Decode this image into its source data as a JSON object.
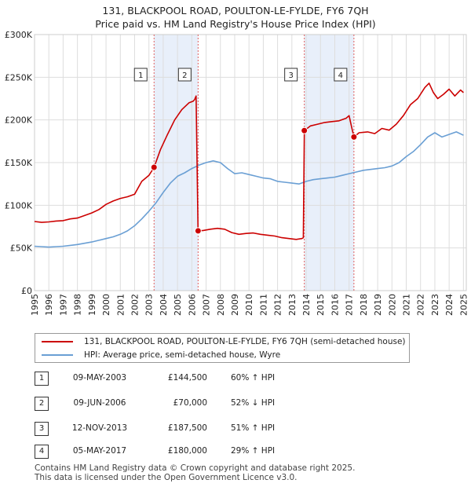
{
  "chart_data": {
    "type": "line",
    "title": "131, BLACKPOOL ROAD, POULTON-LE-FYLDE, FY6 7QH",
    "subtitle": "Price paid vs. HM Land Registry's House Price Index (HPI)",
    "ylim": [
      0,
      300000
    ],
    "xlim": [
      1995,
      2025.2
    ],
    "y_ticks": [
      0,
      50000,
      100000,
      150000,
      200000,
      250000,
      300000
    ],
    "y_tick_labels": [
      "£0",
      "£50K",
      "£100K",
      "£150K",
      "£200K",
      "£250K",
      "£300K"
    ],
    "x_ticks": [
      1995,
      1996,
      1997,
      1998,
      1999,
      2000,
      2001,
      2002,
      2003,
      2004,
      2005,
      2006,
      2007,
      2008,
      2009,
      2010,
      2011,
      2012,
      2013,
      2014,
      2015,
      2016,
      2017,
      2018,
      2019,
      2020,
      2021,
      2022,
      2023,
      2024,
      2025
    ],
    "grid": true,
    "series": [
      {
        "name": "131, BLACKPOOL ROAD, POULTON-LE-FYLDE, FY6 7QH (semi-detached house)",
        "color": "#cc0000",
        "x": [
          1995.0,
          1995.5,
          1996.0,
          1996.5,
          1997.0,
          1997.5,
          1998.0,
          1998.5,
          1999.0,
          1999.5,
          2000.0,
          2000.5,
          2001.0,
          2001.5,
          2002.0,
          2002.5,
          2003.0,
          2003.36,
          2003.8,
          2004.3,
          2004.8,
          2005.3,
          2005.8,
          2006.1,
          2006.2,
          2006.3,
          2006.44,
          2006.8,
          2007.3,
          2007.8,
          2008.3,
          2008.8,
          2009.3,
          2009.8,
          2010.3,
          2010.8,
          2011.3,
          2011.8,
          2012.3,
          2012.8,
          2013.3,
          2013.7,
          2013.8,
          2013.87,
          2014.3,
          2014.8,
          2015.3,
          2015.8,
          2016.3,
          2016.8,
          2017.0,
          2017.2,
          2017.34,
          2017.7,
          2018.3,
          2018.8,
          2019.3,
          2019.8,
          2020.3,
          2020.8,
          2021.3,
          2021.8,
          2022.3,
          2022.6,
          2022.9,
          2023.2,
          2023.6,
          2024.0,
          2024.4,
          2024.8,
          2025.0
        ],
        "values": [
          81000,
          80000,
          80500,
          81500,
          82000,
          84000,
          85000,
          88000,
          91000,
          95000,
          101000,
          105000,
          108000,
          110000,
          113000,
          128000,
          135000,
          144500,
          165000,
          183000,
          200000,
          212000,
          220000,
          222000,
          224000,
          228000,
          70000,
          70500,
          72000,
          73000,
          72000,
          68000,
          66000,
          67000,
          67500,
          66000,
          65000,
          64000,
          62000,
          61000,
          60000,
          61000,
          62000,
          187500,
          193000,
          195000,
          197000,
          198000,
          199000,
          202000,
          205000,
          190000,
          180000,
          185000,
          186000,
          184000,
          190000,
          188000,
          195000,
          205000,
          218000,
          225000,
          238000,
          243000,
          232000,
          225000,
          230000,
          236000,
          228000,
          235000,
          232000
        ]
      },
      {
        "name": "HPI: Average price, semi-detached house, Wyre",
        "color": "#6a9fd4",
        "x": [
          1995.0,
          1995.5,
          1996.0,
          1996.5,
          1997.0,
          1997.5,
          1998.0,
          1998.5,
          1999.0,
          1999.5,
          2000.0,
          2000.5,
          2001.0,
          2001.5,
          2002.0,
          2002.5,
          2003.0,
          2003.5,
          2004.0,
          2004.5,
          2005.0,
          2005.5,
          2006.0,
          2006.5,
          2007.0,
          2007.5,
          2008.0,
          2008.5,
          2009.0,
          2009.5,
          2010.0,
          2010.5,
          2011.0,
          2011.5,
          2012.0,
          2012.5,
          2013.0,
          2013.5,
          2014.0,
          2014.5,
          2015.0,
          2015.5,
          2016.0,
          2016.5,
          2017.0,
          2017.5,
          2018.0,
          2018.5,
          2019.0,
          2019.5,
          2020.0,
          2020.5,
          2021.0,
          2021.5,
          2022.0,
          2022.5,
          2023.0,
          2023.5,
          2024.0,
          2024.5,
          2025.0
        ],
        "values": [
          52000,
          51500,
          51000,
          51500,
          52000,
          53000,
          54000,
          55500,
          57000,
          59000,
          61000,
          63000,
          66000,
          70000,
          76000,
          84000,
          93000,
          103000,
          115000,
          126000,
          134000,
          138000,
          143000,
          147000,
          150000,
          152000,
          150000,
          143000,
          137000,
          138000,
          136000,
          134000,
          132000,
          131000,
          128000,
          127000,
          126000,
          125000,
          128000,
          130000,
          131000,
          132000,
          133000,
          135000,
          137000,
          139000,
          141000,
          142000,
          143000,
          144000,
          146000,
          150000,
          157000,
          163000,
          171000,
          180000,
          185000,
          180000,
          183000,
          186000,
          182000
        ]
      }
    ],
    "annotations": [
      {
        "label": "1",
        "x": 2003.36,
        "value": 144500
      },
      {
        "label": "2",
        "x": 2006.44,
        "value": 70000
      },
      {
        "label": "3",
        "x": 2013.87,
        "value": 187500
      },
      {
        "label": "4",
        "x": 2017.34,
        "value": 180000
      }
    ],
    "shaded_periods": [
      [
        2003.36,
        2006.44
      ],
      [
        2013.87,
        2017.34
      ]
    ]
  },
  "legend": {
    "property_label": "131, BLACKPOOL ROAD, POULTON-LE-FYLDE, FY6 7QH (semi-detached house)",
    "hpi_label": "HPI: Average price, semi-detached house, Wyre"
  },
  "transactions": [
    {
      "num": "1",
      "date": "09-MAY-2003",
      "price": "£144,500",
      "hpi": "60% ↑ HPI"
    },
    {
      "num": "2",
      "date": "09-JUN-2006",
      "price": "£70,000",
      "hpi": "52% ↓ HPI"
    },
    {
      "num": "3",
      "date": "12-NOV-2013",
      "price": "£187,500",
      "hpi": "51% ↑ HPI"
    },
    {
      "num": "4",
      "date": "05-MAY-2017",
      "price": "£180,000",
      "hpi": "29% ↑ HPI"
    }
  ],
  "footer": {
    "line1": "Contains HM Land Registry data © Crown copyright and database right 2025.",
    "line2": "This data is licensed under the Open Government Licence v3.0."
  }
}
